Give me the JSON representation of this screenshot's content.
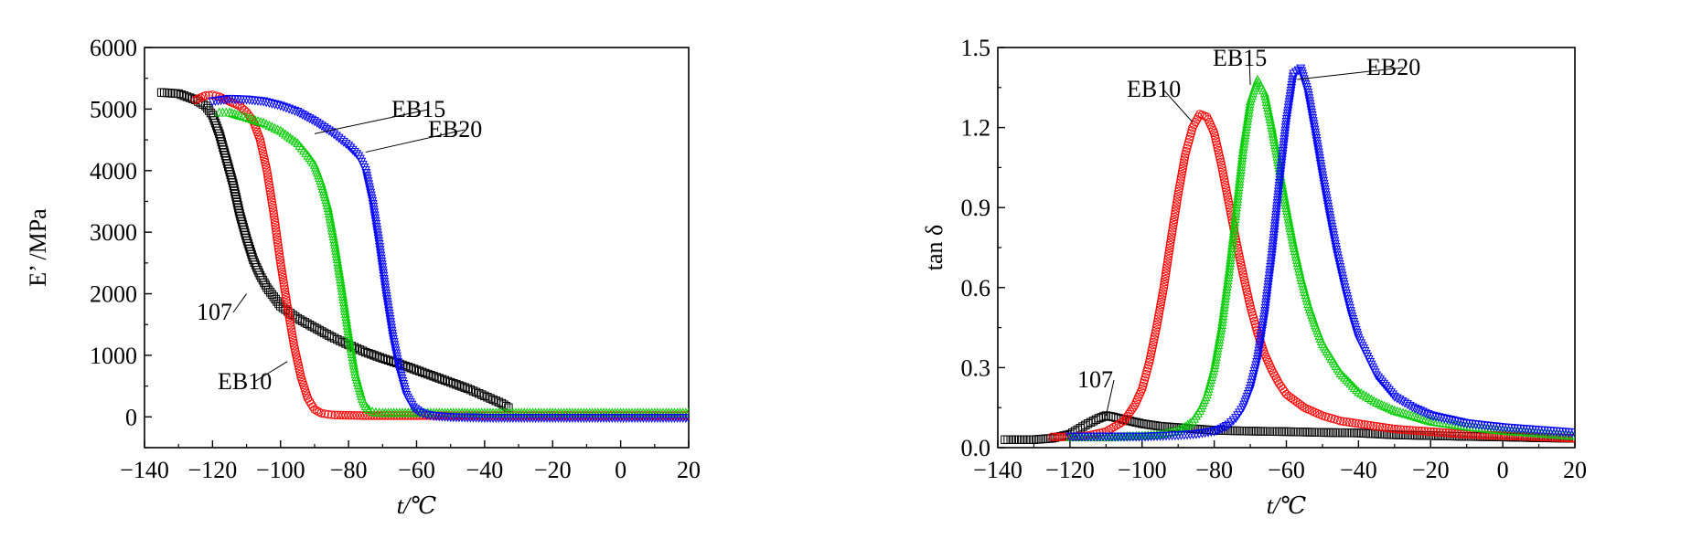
{
  "chart_data": [
    {
      "type": "scatter",
      "xlabel": "t/℃",
      "ylabel": "E’ /MPa",
      "xlim": [
        -140,
        20
      ],
      "ylim": [
        -500,
        6000
      ],
      "xticks": [
        "−140",
        "−120",
        "−100",
        "−80",
        "−60",
        "−40",
        "−20",
        "0",
        "20"
      ],
      "yticks": [
        "0",
        "1000",
        "2000",
        "3000",
        "4000",
        "5000",
        "6000"
      ],
      "grid": false,
      "annotations": [
        {
          "text": "107",
          "target_x": -110,
          "target_y": 2000
        },
        {
          "text": "EB10",
          "target_x": -98,
          "target_y": 900
        },
        {
          "text": "EB15",
          "target_x": -90,
          "target_y": 4600
        },
        {
          "text": "EB20",
          "target_x": -75,
          "target_y": 4300
        }
      ],
      "series": [
        {
          "name": "107",
          "marker": "square",
          "color": "#000000",
          "x": [
            -135,
            -130,
            -125,
            -122,
            -120,
            -118,
            -116,
            -114,
            -112,
            -110,
            -108,
            -106,
            -104,
            -102,
            -100,
            -95,
            -90,
            -85,
            -80,
            -75,
            -70,
            -65,
            -60,
            -55,
            -50,
            -45,
            -40,
            -35,
            -33
          ],
          "y": [
            5270,
            5250,
            5150,
            5050,
            4900,
            4600,
            4200,
            3800,
            3300,
            2900,
            2550,
            2300,
            2100,
            1950,
            1800,
            1600,
            1450,
            1300,
            1170,
            1050,
            950,
            860,
            760,
            660,
            560,
            460,
            340,
            220,
            150
          ]
        },
        {
          "name": "EB10",
          "marker": "circle",
          "color": "#ff0000",
          "x": [
            -125,
            -122,
            -120,
            -118,
            -116,
            -114,
            -112,
            -110,
            -108,
            -106,
            -104,
            -102,
            -100,
            -98,
            -96,
            -94,
            -92,
            -90,
            -88,
            -86,
            -84,
            -80,
            -75,
            -70,
            -65,
            -60,
            -50,
            -40,
            -30,
            -20,
            -10,
            0,
            10,
            20
          ],
          "y": [
            5150,
            5220,
            5230,
            5200,
            5150,
            5100,
            5050,
            4950,
            4800,
            4500,
            4000,
            3300,
            2500,
            1800,
            1150,
            650,
            300,
            120,
            60,
            40,
            30,
            25,
            20,
            20,
            20,
            20,
            20,
            20,
            20,
            20,
            20,
            20,
            20,
            20
          ]
        },
        {
          "name": "EB15",
          "marker": "triangle-up",
          "color": "#00cc00",
          "x": [
            -118,
            -115,
            -112,
            -110,
            -105,
            -100,
            -95,
            -92,
            -90,
            -88,
            -86,
            -84,
            -82,
            -80,
            -78,
            -76,
            -75,
            -74,
            -73,
            -72,
            -70,
            -65,
            -60,
            -50,
            -40,
            -30,
            -20,
            -10,
            0,
            10,
            20
          ],
          "y": [
            4950,
            4950,
            4900,
            4870,
            4780,
            4650,
            4450,
            4250,
            4100,
            3800,
            3400,
            2800,
            2100,
            1350,
            700,
            300,
            180,
            120,
            90,
            80,
            70,
            70,
            70,
            70,
            70,
            70,
            70,
            70,
            70,
            70,
            70
          ]
        },
        {
          "name": "EB20",
          "marker": "triangle-down",
          "color": "#0000ff",
          "x": [
            -120,
            -115,
            -110,
            -105,
            -100,
            -95,
            -90,
            -85,
            -80,
            -77,
            -75,
            -73,
            -71,
            -69,
            -67,
            -65,
            -63,
            -61,
            -59,
            -57,
            -55,
            -50,
            -40,
            -30,
            -20,
            -10,
            0,
            10,
            20
          ],
          "y": [
            5120,
            5160,
            5150,
            5120,
            5050,
            4950,
            4800,
            4620,
            4400,
            4230,
            4000,
            3500,
            2800,
            2000,
            1300,
            750,
            350,
            150,
            70,
            30,
            10,
            -10,
            -20,
            -20,
            -20,
            -20,
            -20,
            -20,
            -20
          ]
        }
      ]
    },
    {
      "type": "scatter",
      "xlabel": "t/℃",
      "ylabel": "tan δ",
      "xlim": [
        -140,
        20
      ],
      "ylim": [
        0,
        1.5
      ],
      "xticks": [
        "−140",
        "−120",
        "−100",
        "−80",
        "−60",
        "−40",
        "−20",
        "0",
        "20"
      ],
      "yticks": [
        "0.0",
        "0.3",
        "0.6",
        "0.9",
        "1.2",
        "1.5"
      ],
      "grid": false,
      "annotations": [
        {
          "text": "107",
          "target_x": -110,
          "target_y": 0.12
        },
        {
          "text": "EB10",
          "target_x": -86,
          "target_y": 1.22
        },
        {
          "text": "EB15",
          "target_x": -70,
          "target_y": 1.36
        },
        {
          "text": "EB20",
          "target_x": -57,
          "target_y": 1.38
        }
      ],
      "series": [
        {
          "name": "107",
          "marker": "square",
          "color": "#000000",
          "x": [
            -138,
            -130,
            -125,
            -120,
            -115,
            -112,
            -110,
            -108,
            -105,
            -100,
            -95,
            -90,
            -85,
            -80,
            -70,
            -60,
            -50,
            -40,
            -30,
            -20,
            -10,
            0,
            10,
            20
          ],
          "y": [
            0.03,
            0.03,
            0.035,
            0.05,
            0.09,
            0.11,
            0.12,
            0.115,
            0.105,
            0.09,
            0.08,
            0.075,
            0.07,
            0.065,
            0.062,
            0.06,
            0.057,
            0.055,
            0.048,
            0.045,
            0.042,
            0.04,
            0.037,
            0.035
          ]
        },
        {
          "name": "EB10",
          "marker": "circle",
          "color": "#ff0000",
          "x": [
            -125,
            -120,
            -115,
            -110,
            -105,
            -102,
            -100,
            -98,
            -96,
            -94,
            -92,
            -90,
            -88,
            -86,
            -84,
            -82,
            -80,
            -78,
            -76,
            -74,
            -72,
            -70,
            -68,
            -66,
            -64,
            -62,
            -60,
            -55,
            -50,
            -45,
            -40,
            -30,
            -20,
            -10,
            0,
            10,
            20
          ],
          "y": [
            0.04,
            0.04,
            0.045,
            0.06,
            0.1,
            0.16,
            0.22,
            0.32,
            0.45,
            0.6,
            0.78,
            0.95,
            1.1,
            1.2,
            1.25,
            1.24,
            1.18,
            1.06,
            0.92,
            0.78,
            0.65,
            0.53,
            0.43,
            0.35,
            0.29,
            0.24,
            0.2,
            0.15,
            0.12,
            0.1,
            0.09,
            0.07,
            0.06,
            0.05,
            0.045,
            0.04,
            0.035
          ]
        },
        {
          "name": "EB15",
          "marker": "triangle-up",
          "color": "#00cc00",
          "x": [
            -120,
            -110,
            -100,
            -95,
            -90,
            -88,
            -86,
            -84,
            -82,
            -80,
            -78,
            -76,
            -74,
            -72,
            -70,
            -68,
            -66,
            -64,
            -62,
            -60,
            -58,
            -56,
            -54,
            -52,
            -50,
            -45,
            -40,
            -35,
            -30,
            -20,
            -10,
            0,
            10,
            20
          ],
          "y": [
            0.04,
            0.04,
            0.045,
            0.05,
            0.065,
            0.08,
            0.1,
            0.14,
            0.2,
            0.3,
            0.45,
            0.65,
            0.88,
            1.12,
            1.3,
            1.38,
            1.33,
            1.2,
            1.05,
            0.9,
            0.76,
            0.64,
            0.54,
            0.46,
            0.39,
            0.28,
            0.21,
            0.17,
            0.14,
            0.1,
            0.08,
            0.065,
            0.055,
            0.045
          ]
        },
        {
          "name": "EB20",
          "marker": "triangle-down",
          "color": "#0000ff",
          "x": [
            -120,
            -110,
            -100,
            -90,
            -85,
            -80,
            -78,
            -76,
            -74,
            -72,
            -70,
            -68,
            -66,
            -64,
            -62,
            -60,
            -58,
            -56,
            -54,
            -52,
            -50,
            -48,
            -46,
            -44,
            -42,
            -40,
            -35,
            -30,
            -25,
            -20,
            -10,
            0,
            10,
            20
          ],
          "y": [
            0.04,
            0.04,
            0.04,
            0.045,
            0.05,
            0.06,
            0.07,
            0.085,
            0.11,
            0.15,
            0.22,
            0.33,
            0.5,
            0.72,
            0.98,
            1.22,
            1.4,
            1.42,
            1.33,
            1.18,
            1.02,
            0.87,
            0.73,
            0.61,
            0.5,
            0.41,
            0.27,
            0.19,
            0.15,
            0.12,
            0.09,
            0.075,
            0.065,
            0.055
          ]
        }
      ]
    }
  ]
}
